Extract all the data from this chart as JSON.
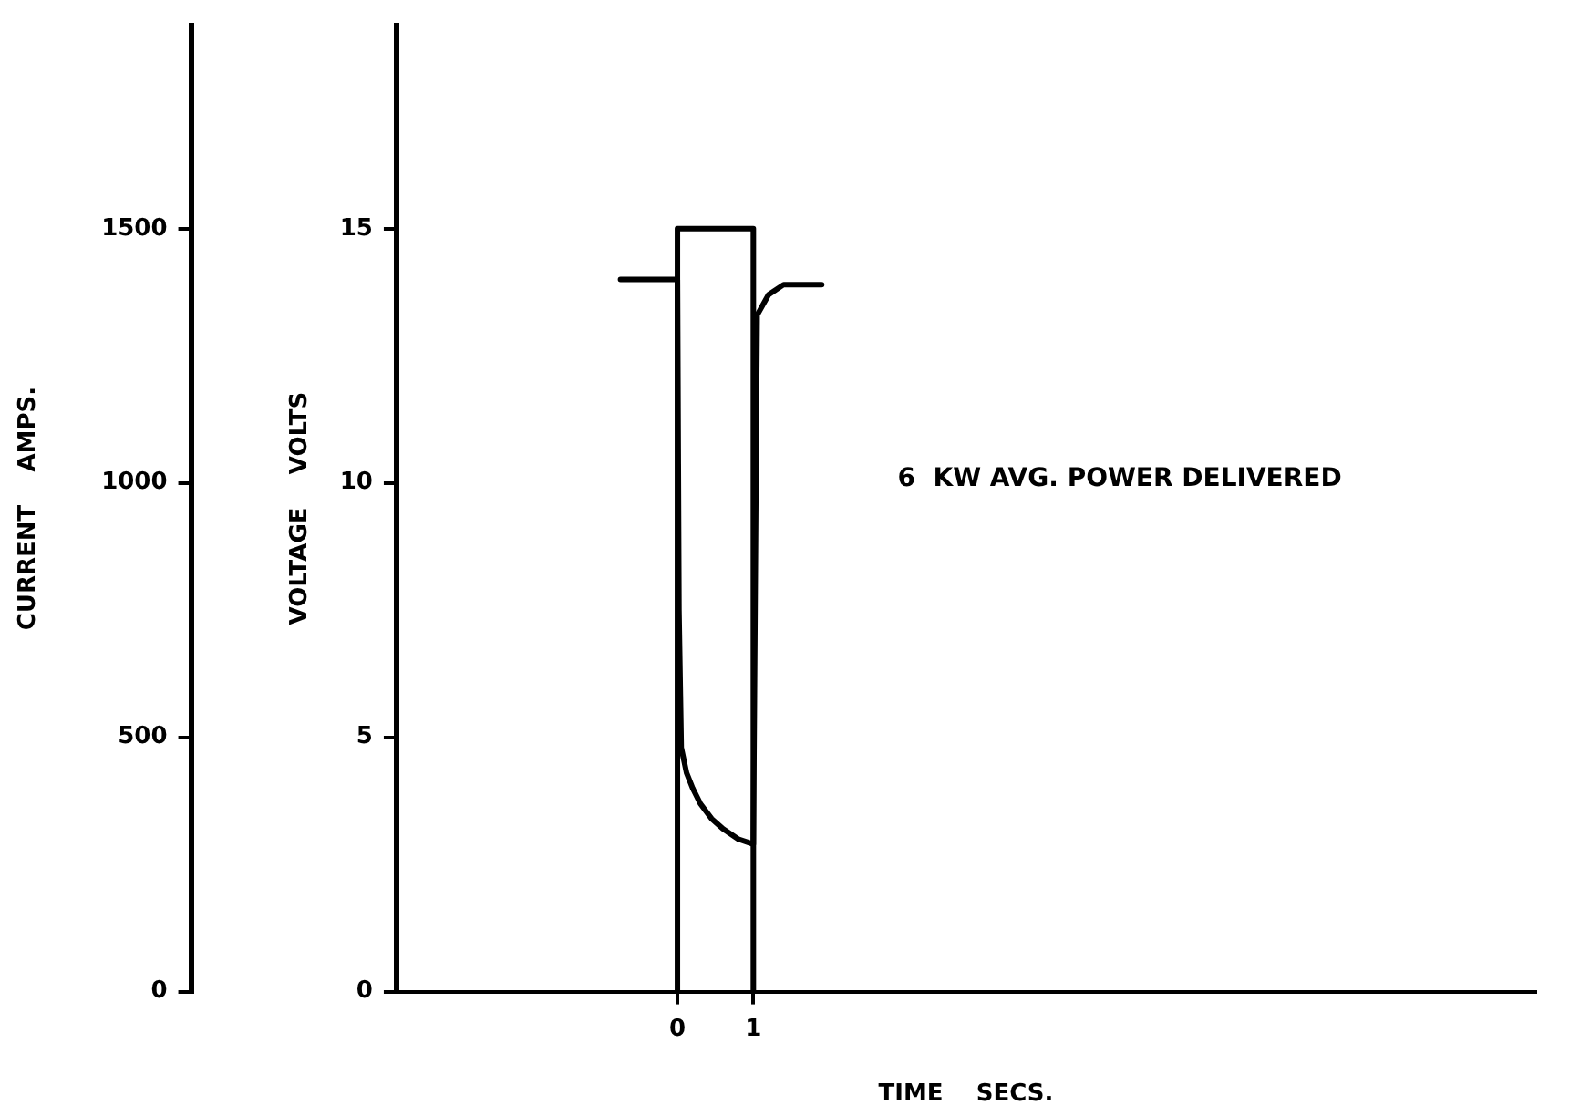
{
  "chart_data": {
    "type": "line",
    "xlabel": "TIME    SECS.",
    "ylabel": "VOLTAGE    VOLTS",
    "y2label": "CURRENT    AMPS.",
    "annotations": [
      "6  KW AVG. POWER DELIVERED"
    ],
    "xlim": [
      -3.7,
      11.3
    ],
    "xticks": [
      0,
      1
    ],
    "ylim": [
      0,
      19
    ],
    "yticks": [
      0,
      5,
      10,
      15
    ],
    "y2lim": [
      0,
      1900
    ],
    "y2ticks": [
      0,
      500,
      1000,
      1500
    ],
    "grid": false,
    "legend": false,
    "marker": "none",
    "line_style": "solid",
    "series": [
      {
        "color": "#000000",
        "x": [
          -0.75,
          0,
          0.02,
          0.05,
          0.12,
          0.2,
          0.3,
          0.45,
          0.6,
          0.8,
          1,
          1.05,
          1.2,
          1.4,
          1.9
        ],
        "values": [
          14.0,
          14.0,
          7.5,
          4.8,
          4.3,
          4.0,
          3.7,
          3.4,
          3.2,
          3.0,
          2.9,
          13.3,
          13.7,
          13.9,
          13.9
        ]
      },
      {
        "color": "#000000",
        "axis": "y2",
        "x": [
          0,
          0,
          1,
          1
        ],
        "values": [
          0,
          1500,
          1500,
          0
        ]
      }
    ]
  }
}
